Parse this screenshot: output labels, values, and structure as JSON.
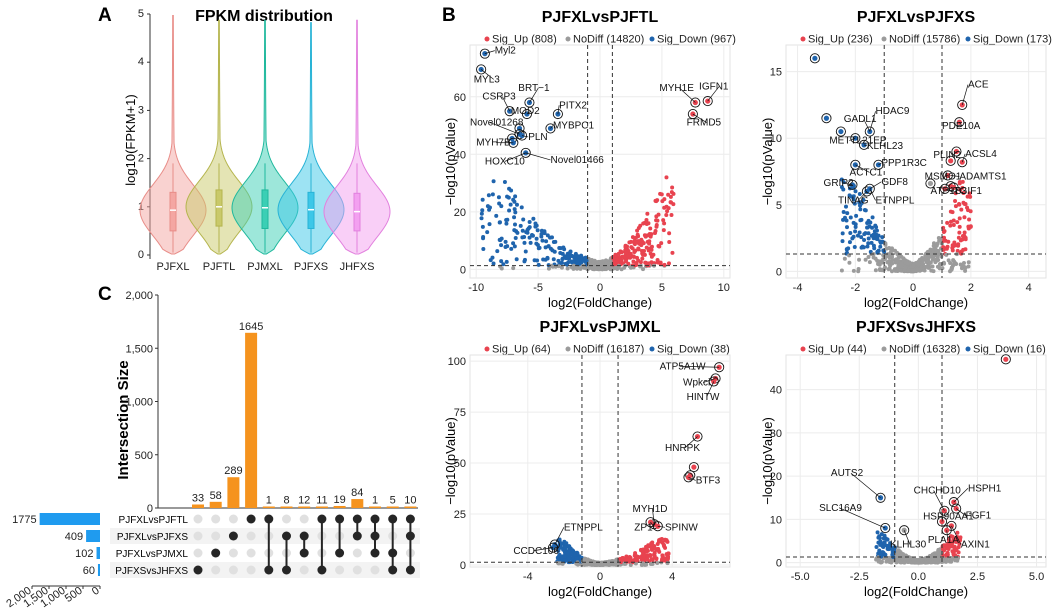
{
  "panel_letters": [
    "A",
    "B",
    "C"
  ],
  "colors": {
    "up": "#e8434f",
    "nodiff": "#9b9b9b",
    "down": "#1f64ad",
    "bar": "#f5931e",
    "setbar": "#1f9bef",
    "dot_on": "#262626",
    "dot_off": "#e0e0e0"
  },
  "chart_data": [
    {
      "type": "violin",
      "title": "FPKM distribution",
      "ylabel": "log10(FPKM+1)",
      "ylim": [
        0,
        5
      ],
      "yticks": [
        0,
        1,
        2,
        3,
        4,
        5
      ],
      "groups": [
        "PJFXL",
        "PJFTL",
        "PJMXL",
        "PJFXS",
        "JHFXS"
      ],
      "colors": [
        "#f4a6a2",
        "#c9c96a",
        "#3bcfb5",
        "#3cc7e8",
        "#f3a0f0"
      ],
      "strokes": [
        "#e88d88",
        "#b5b54e",
        "#20b89d",
        "#28b3d6",
        "#e281de"
      ],
      "max": [
        5.0,
        4.9,
        4.9,
        4.85,
        4.9
      ],
      "median": [
        0.93,
        1.0,
        0.98,
        0.94,
        0.9
      ],
      "q1": [
        0.5,
        0.6,
        0.55,
        0.55,
        0.5
      ],
      "q3": [
        1.3,
        1.35,
        1.35,
        1.3,
        1.28
      ]
    },
    {
      "type": "volcano",
      "title": "PJFXLvsPJFTL",
      "legend": [
        "Sig_Up (808)",
        "NoDiff (14820)",
        "Sig_Down (967)"
      ],
      "xlabel": "log2(FoldChange)",
      "ylabel": "−log10(pValue)",
      "xlim": [
        -10.5,
        10.5
      ],
      "ylim": [
        -3,
        78
      ],
      "xticks": [
        -10,
        -5,
        0,
        5,
        10
      ],
      "yticks": [
        0,
        20,
        40,
        60
      ],
      "fc_cut": 1,
      "p_cut": 1.3,
      "max_up_x": 6.0,
      "max_down_x": -9.6,
      "max_y": 32,
      "points": [
        {
          "x": -9.3,
          "y": 75,
          "g": "down"
        },
        {
          "x": -9.6,
          "y": 69.5,
          "g": "down"
        },
        {
          "x": -7.3,
          "y": 55,
          "g": "down"
        },
        {
          "x": -5.7,
          "y": 58,
          "g": "down"
        },
        {
          "x": -5.9,
          "y": 54,
          "g": "down"
        },
        {
          "x": -3.4,
          "y": 54,
          "g": "down"
        },
        {
          "x": -6.5,
          "y": 49,
          "g": "down"
        },
        {
          "x": -6.5,
          "y": 47,
          "g": "down"
        },
        {
          "x": -6.3,
          "y": 46.5,
          "g": "down"
        },
        {
          "x": -7.1,
          "y": 45.5,
          "g": "down"
        },
        {
          "x": -7.0,
          "y": 44,
          "g": "down"
        },
        {
          "x": -4.0,
          "y": 49,
          "g": "down"
        },
        {
          "x": -6.0,
          "y": 40.5,
          "g": "down"
        },
        {
          "x": 7.7,
          "y": 58,
          "g": "up"
        },
        {
          "x": 8.7,
          "y": 58.5,
          "g": "up"
        },
        {
          "x": 7.5,
          "y": 54,
          "g": "up"
        }
      ],
      "labels": [
        {
          "text": "Myl2",
          "x": -9.3,
          "y": 75,
          "lx": -8.5,
          "ly": 75
        },
        {
          "text": "MYL3",
          "x": -9.6,
          "y": 69.5,
          "lx": -10.2,
          "ly": 65
        },
        {
          "text": "BRT−1",
          "x": -5.7,
          "y": 58,
          "lx": -6.6,
          "ly": 62
        },
        {
          "text": "CSRP3",
          "x": -7.3,
          "y": 55,
          "lx": -9.5,
          "ly": 59
        },
        {
          "text": "MOD2",
          "x": -5.9,
          "y": 54,
          "lx": -7.2,
          "ly": 54
        },
        {
          "text": "PITX2",
          "x": -3.4,
          "y": 54,
          "lx": -3.3,
          "ly": 56
        },
        {
          "text": "MYBPC1",
          "x": -4.0,
          "y": 49,
          "lx": -3.8,
          "ly": 49
        },
        {
          "text": "Novel01268",
          "x": -6.5,
          "y": 47,
          "lx": -10.5,
          "ly": 50
        },
        {
          "text": "PLN",
          "x": -6.3,
          "y": 46.5,
          "lx": -5.8,
          "ly": 45
        },
        {
          "text": "MYH7B",
          "x": -7.0,
          "y": 44,
          "lx": -10.0,
          "ly": 43
        },
        {
          "text": "HOXC10",
          "x": -6.0,
          "y": 40.5,
          "lx": -9.3,
          "ly": 36.5
        },
        {
          "text": "Novel01466",
          "x": -6.0,
          "y": 40.5,
          "lx": -4.0,
          "ly": 37
        },
        {
          "text": "MYH1E",
          "x": 7.7,
          "y": 58,
          "lx": 4.8,
          "ly": 62
        },
        {
          "text": "IGFN1",
          "x": 8.7,
          "y": 58.5,
          "lx": 8.0,
          "ly": 62.5
        },
        {
          "text": "FRMD5",
          "x": 7.5,
          "y": 54,
          "lx": 7.0,
          "ly": 50
        }
      ]
    },
    {
      "type": "volcano",
      "title": "PJFXLvsPJFXS",
      "legend": [
        "Sig_Up (236)",
        "NoDiff (15786)",
        "Sig_Down (173)"
      ],
      "xlabel": "log2(FoldChange)",
      "ylabel": "−log10(pValue)",
      "xlim": [
        -4.4,
        4.6
      ],
      "ylim": [
        -0.5,
        17
      ],
      "xticks": [
        -4,
        -2,
        0,
        2,
        4
      ],
      "yticks": [
        0,
        5,
        10,
        15
      ],
      "fc_cut": 1,
      "p_cut": 1.3,
      "max_up_x": 2.0,
      "max_down_x": -2.5,
      "max_y": 7,
      "points": [
        {
          "x": -3.4,
          "y": 16,
          "g": "down"
        },
        {
          "x": -3.0,
          "y": 11.5,
          "g": "down"
        },
        {
          "x": -2.5,
          "y": 10.5,
          "g": "down"
        },
        {
          "x": -2.0,
          "y": 10,
          "g": "down"
        },
        {
          "x": -1.5,
          "y": 10.5,
          "g": "down"
        },
        {
          "x": -1.7,
          "y": 9.5,
          "g": "down"
        },
        {
          "x": -2.0,
          "y": 8,
          "g": "down"
        },
        {
          "x": -1.2,
          "y": 8,
          "g": "down"
        },
        {
          "x": -2.1,
          "y": 6.5,
          "g": "down"
        },
        {
          "x": -1.6,
          "y": 6,
          "g": "down"
        },
        {
          "x": -1.5,
          "y": 6.2,
          "g": "down"
        },
        {
          "x": 1.7,
          "y": 12.5,
          "g": "up"
        },
        {
          "x": 1.6,
          "y": 11.2,
          "g": "up"
        },
        {
          "x": 1.5,
          "y": 9,
          "g": "up"
        },
        {
          "x": 1.3,
          "y": 8.3,
          "g": "up"
        },
        {
          "x": 1.7,
          "y": 8.2,
          "g": "up"
        },
        {
          "x": 1.2,
          "y": 7.2,
          "g": "up"
        },
        {
          "x": 1.3,
          "y": 6.4,
          "g": "up"
        },
        {
          "x": 1.1,
          "y": 6.2,
          "g": "up"
        },
        {
          "x": 1.4,
          "y": 6.3,
          "g": "up"
        },
        {
          "x": 0.6,
          "y": 6.6,
          "g": "nodiff"
        }
      ],
      "labels": [
        {
          "text": "ACE",
          "x": 1.7,
          "y": 12.5,
          "lx": 1.9,
          "ly": 13.8
        },
        {
          "text": "GADL1",
          "x": -1.5,
          "y": 10.5,
          "lx": -2.4,
          "ly": 11.2
        },
        {
          "text": "HDAC9",
          "x": -1.5,
          "y": 10.5,
          "lx": -1.3,
          "ly": 11.8
        },
        {
          "text": "PDE10A",
          "x": 1.6,
          "y": 11.2,
          "lx": 1.0,
          "ly": 10.7
        },
        {
          "text": "METTL21EP",
          "x": -2.0,
          "y": 10,
          "lx": -2.9,
          "ly": 9.6
        },
        {
          "text": "KLHL23",
          "x": -1.7,
          "y": 9.5,
          "lx": -1.6,
          "ly": 9.2
        },
        {
          "text": "PLIN2",
          "x": 1.5,
          "y": 9,
          "lx": 0.7,
          "ly": 8.5
        },
        {
          "text": "ACSL4",
          "x": 1.7,
          "y": 8.2,
          "lx": 1.8,
          "ly": 8.6
        },
        {
          "text": "PPP1R3C",
          "x": -1.2,
          "y": 8,
          "lx": -1.1,
          "ly": 7.9
        },
        {
          "text": "ACTC1",
          "x": -2.0,
          "y": 8,
          "lx": -2.2,
          "ly": 7.2
        },
        {
          "text": "MSMO1",
          "x": 1.2,
          "y": 7.2,
          "lx": 0.4,
          "ly": 6.9
        },
        {
          "text": "ADAMTS1",
          "x": 1.3,
          "y": 7.2,
          "lx": 1.6,
          "ly": 6.9
        },
        {
          "text": "GRIP2",
          "x": -2.1,
          "y": 6.5,
          "lx": -3.1,
          "ly": 6.4
        },
        {
          "text": "GDF8",
          "x": -1.5,
          "y": 6.2,
          "lx": -1.1,
          "ly": 6.5
        },
        {
          "text": "ATP1B3",
          "x": 1.1,
          "y": 6.2,
          "lx": 0.6,
          "ly": 5.8
        },
        {
          "text": "TGIF1",
          "x": 1.4,
          "y": 6.3,
          "lx": 1.4,
          "ly": 5.8
        },
        {
          "text": "TINAG",
          "x": -1.6,
          "y": 6,
          "lx": -2.6,
          "ly": 5.1
        },
        {
          "text": "ETNPPL",
          "x": -1.5,
          "y": 6.2,
          "lx": -1.3,
          "ly": 5.1
        }
      ]
    },
    {
      "type": "volcano",
      "title": "PJFXLvsPJMXL",
      "legend": [
        "Sig_Up (64)",
        "NoDiff (16187)",
        "Sig_Down (38)"
      ],
      "xlabel": "log2(FoldChange)",
      "ylabel": "−log10(pValue)",
      "xlim": [
        -7.2,
        7.2
      ],
      "ylim": [
        -1,
        103
      ],
      "xticks": [
        -4,
        0,
        4
      ],
      "yticks": [
        0,
        25,
        50,
        75,
        100
      ],
      "fc_cut": 1,
      "p_cut": 1.3,
      "max_up_x": 3.8,
      "max_down_x": -2.4,
      "max_y": 13,
      "points": [
        {
          "x": 6.6,
          "y": 97,
          "g": "up"
        },
        {
          "x": 6.4,
          "y": 91.5,
          "g": "up"
        },
        {
          "x": 6.3,
          "y": 90,
          "g": "up"
        },
        {
          "x": 5.4,
          "y": 63,
          "g": "up"
        },
        {
          "x": 5.2,
          "y": 48,
          "g": "up"
        },
        {
          "x": 5.0,
          "y": 44,
          "g": "up"
        },
        {
          "x": 4.9,
          "y": 43,
          "g": "up"
        },
        {
          "x": 3.0,
          "y": 20,
          "g": "up"
        },
        {
          "x": 2.8,
          "y": 21,
          "g": "up"
        },
        {
          "x": 3.2,
          "y": 19,
          "g": "up"
        },
        {
          "x": -2.5,
          "y": 10,
          "g": "down"
        },
        {
          "x": -2.6,
          "y": 8.5,
          "g": "down"
        }
      ],
      "labels": [
        {
          "text": "ATP5A1W",
          "x": 6.6,
          "y": 97,
          "lx": 3.3,
          "ly": 96
        },
        {
          "text": "Wpkci",
          "x": 6.4,
          "y": 91.5,
          "lx": 4.6,
          "ly": 88
        },
        {
          "text": "HINTW",
          "x": 6.3,
          "y": 90,
          "lx": 4.8,
          "ly": 81
        },
        {
          "text": "HNRPK",
          "x": 5.4,
          "y": 63,
          "lx": 3.6,
          "ly": 56
        },
        {
          "text": "BTF3",
          "x": 4.9,
          "y": 43,
          "lx": 5.3,
          "ly": 40
        },
        {
          "text": "MYH1D",
          "x": 3.0,
          "y": 20,
          "lx": 1.8,
          "ly": 26
        },
        {
          "text": "ZP1",
          "x": 2.8,
          "y": 21,
          "lx": 1.9,
          "ly": 17
        },
        {
          "text": "SPINW",
          "x": 3.2,
          "y": 19,
          "lx": 3.6,
          "ly": 17
        },
        {
          "text": "ETNPPL",
          "x": -2.5,
          "y": 10,
          "lx": -2.0,
          "ly": 17
        },
        {
          "text": "CCDC106",
          "x": -2.6,
          "y": 8.5,
          "lx": -4.8,
          "ly": 5.5
        }
      ]
    },
    {
      "type": "volcano",
      "title": "PJFXSvsJHFXS",
      "legend": [
        "Sig_Up (44)",
        "NoDiff (16328)",
        "Sig_Down (16)"
      ],
      "xlabel": "log2(FoldChange)",
      "ylabel": "−log10(pValue)",
      "xlim": [
        -5.6,
        5.4
      ],
      "ylim": [
        -1,
        48
      ],
      "xticks": [
        -5.0,
        -2.5,
        0.0,
        2.5,
        5.0
      ],
      "yticks": [
        0,
        10,
        20,
        30,
        40
      ],
      "fc_cut": 1,
      "p_cut": 1.3,
      "max_up_x": 1.8,
      "max_down_x": -1.8,
      "max_y": 7,
      "points": [
        {
          "x": 3.7,
          "y": 47,
          "g": "up"
        },
        {
          "x": -1.6,
          "y": 15,
          "g": "down"
        },
        {
          "x": 1.5,
          "y": 14,
          "g": "up"
        },
        {
          "x": 1.1,
          "y": 12,
          "g": "up"
        },
        {
          "x": 1.6,
          "y": 12.5,
          "g": "up"
        },
        {
          "x": -1.4,
          "y": 8,
          "g": "down"
        },
        {
          "x": 1.0,
          "y": 9.5,
          "g": "up"
        },
        {
          "x": 1.4,
          "y": 8.5,
          "g": "up"
        },
        {
          "x": 1.2,
          "y": 7.5,
          "g": "up"
        },
        {
          "x": -0.6,
          "y": 7.5,
          "g": "nodiff"
        }
      ],
      "labels": [
        {
          "text": "CHCHD10",
          "x": 1.1,
          "y": 12,
          "lx": -0.2,
          "ly": 16
        },
        {
          "text": "HSPH1",
          "x": 1.5,
          "y": 14,
          "lx": 2.1,
          "ly": 16.5
        },
        {
          "text": "AUTS2",
          "x": -1.6,
          "y": 15,
          "lx": -3.7,
          "ly": 20
        },
        {
          "text": "SLC16A9",
          "x": -1.4,
          "y": 8,
          "lx": -4.2,
          "ly": 12
        },
        {
          "text": "HSP90AA1",
          "x": 1.0,
          "y": 9.5,
          "lx": 0.2,
          "ly": 10
        },
        {
          "text": "FGF1",
          "x": 1.6,
          "y": 12.5,
          "lx": 2.0,
          "ly": 10.2
        },
        {
          "text": "KLHL30",
          "x": -0.6,
          "y": 7.5,
          "lx": -1.2,
          "ly": 3.5
        },
        {
          "text": "PLA1A",
          "x": 1.2,
          "y": 7.5,
          "lx": 0.4,
          "ly": 4.5
        },
        {
          "text": "AXIN1",
          "x": 1.4,
          "y": 8.5,
          "lx": 1.8,
          "ly": 3.5
        }
      ]
    },
    {
      "type": "upset",
      "ylabel": "Intersection Size",
      "ylim": [
        0,
        2000
      ],
      "yticks": [
        "0",
        "500",
        "1,000",
        "1,500",
        "2,000"
      ],
      "ytick_values": [
        0,
        500,
        1000,
        1500,
        2000
      ],
      "intersection_sizes": [
        33,
        58,
        289,
        1645,
        1,
        8,
        12,
        11,
        19,
        84,
        1,
        5,
        10
      ],
      "sets": [
        "PJFXLvsPJFTL",
        "PJFXLvsPJFXS",
        "PJFXLvsPJMXL",
        "PJFXSvsJHFXS"
      ],
      "set_sizes": [
        1775,
        409,
        102,
        60
      ],
      "set_xticks": [
        "2,000",
        "1,500",
        "1,000",
        "500",
        "0"
      ],
      "set_xtick_values": [
        2000,
        1500,
        1000,
        500,
        0
      ],
      "matrix": [
        [
          3
        ],
        [
          2
        ],
        [
          1
        ],
        [
          0
        ],
        [
          0,
          3
        ],
        [
          1,
          3
        ],
        [
          1,
          2
        ],
        [
          0,
          3
        ],
        [
          0,
          2
        ],
        [
          0,
          1
        ],
        [
          0,
          1,
          2
        ],
        [
          0,
          2,
          3
        ],
        [
          0,
          1,
          3
        ]
      ]
    }
  ]
}
